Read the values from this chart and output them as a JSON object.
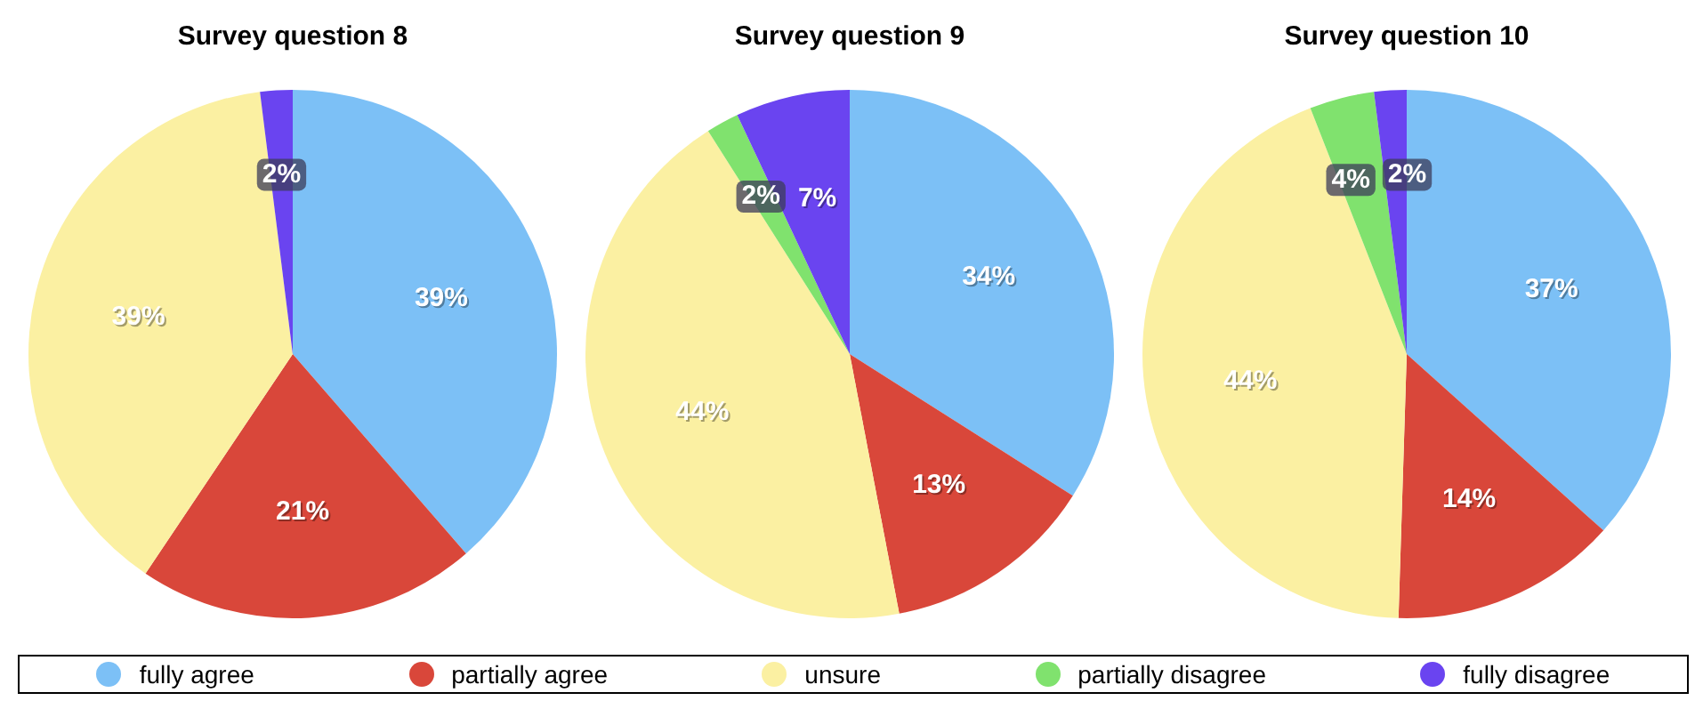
{
  "chart_data": [
    {
      "type": "pie",
      "title": "Survey question 8",
      "categories": [
        "fully agree",
        "partially agree",
        "unsure",
        "partially disagree",
        "fully disagree"
      ],
      "values": [
        39,
        21,
        39,
        0,
        2
      ],
      "value_labels": [
        "39%",
        "21%",
        "39%",
        null,
        "2%"
      ],
      "colors": [
        "#7cc0f6",
        "#d9473a",
        "#fbf0a2",
        "#80e26e",
        "#6a44f0"
      ],
      "legend": "bottom"
    },
    {
      "type": "pie",
      "title": "Survey question 9",
      "values": [
        34,
        13,
        44,
        2,
        7
      ],
      "value_labels": [
        "34%",
        "13%",
        "44%",
        "2%",
        "7%"
      ],
      "colors": [
        "#7cc0f6",
        "#d9473a",
        "#fbf0a2",
        "#80e26e",
        "#6a44f0"
      ]
    },
    {
      "type": "pie",
      "title": "Survey question 10",
      "values": [
        37,
        14,
        44,
        4,
        2
      ],
      "value_labels": [
        "37%",
        "14%",
        "44%",
        "4%",
        "2%"
      ],
      "colors": [
        "#7cc0f6",
        "#d9473a",
        "#fbf0a2",
        "#80e26e",
        "#6a44f0"
      ]
    }
  ]
}
